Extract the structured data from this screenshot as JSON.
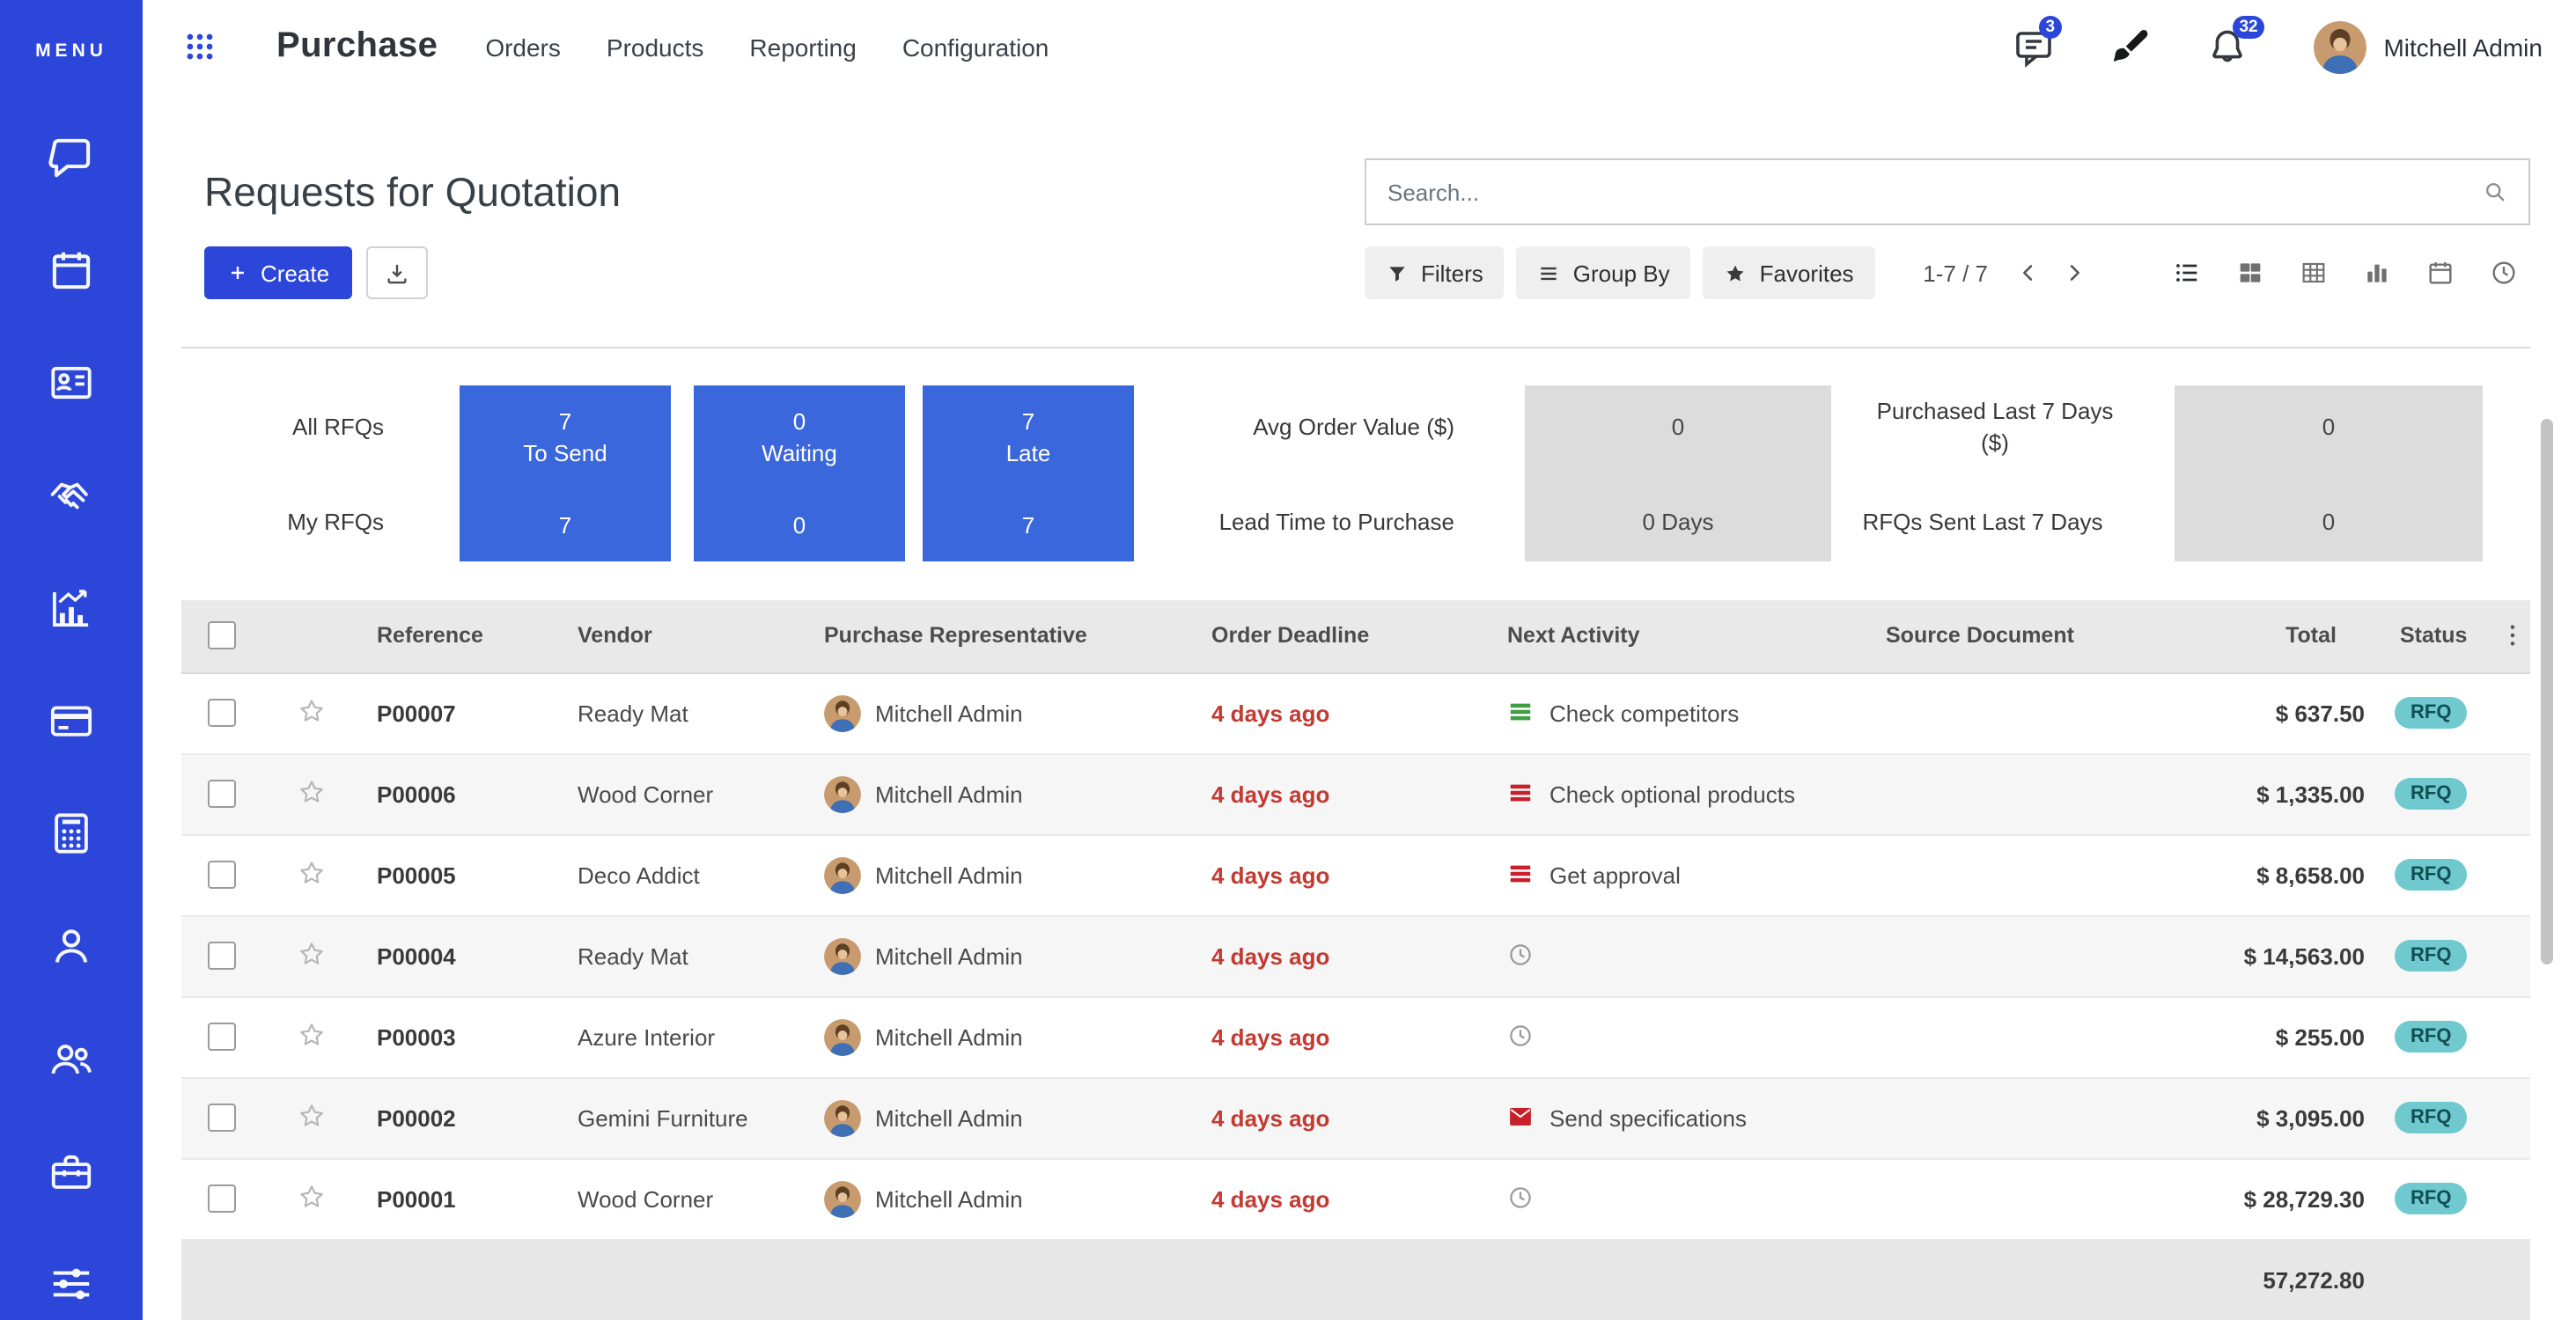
{
  "colors": {
    "accent": "#2b46d8",
    "card_blue": "#3a67dc",
    "danger": "#c23a32",
    "activity_red": "#c8202b",
    "activity_green": "#3f9e43",
    "badge_bg": "#6fc9ce",
    "badge_text": "#114f55",
    "header_bg": "#e9e9e9"
  },
  "sidebar": {
    "menu_label": "MENU",
    "items": [
      {
        "icon": "chat",
        "name": "sidebar-item-chat"
      },
      {
        "icon": "calendar",
        "name": "sidebar-item-calendar"
      },
      {
        "icon": "contacts",
        "name": "sidebar-item-contacts"
      },
      {
        "icon": "handshake",
        "name": "sidebar-item-handshake"
      },
      {
        "icon": "chart",
        "name": "sidebar-item-chart"
      },
      {
        "icon": "card",
        "name": "sidebar-item-card"
      },
      {
        "icon": "calculator",
        "name": "sidebar-item-calculator"
      },
      {
        "icon": "user",
        "name": "sidebar-item-user"
      },
      {
        "icon": "users",
        "name": "sidebar-item-users"
      },
      {
        "icon": "toolbox",
        "name": "sidebar-item-toolbox"
      },
      {
        "icon": "sliders",
        "name": "sidebar-item-sliders"
      }
    ]
  },
  "topbar": {
    "app_title": "Purchase",
    "menus": [
      "Orders",
      "Products",
      "Reporting",
      "Configuration"
    ],
    "messages_badge": "3",
    "notifications_badge": "32",
    "user_name": "Mitchell Admin"
  },
  "control_panel": {
    "page_title": "Requests for Quotation",
    "create_label": "Create",
    "search_placeholder": "Search...",
    "filters_label": "Filters",
    "group_by_label": "Group By",
    "favorites_label": "Favorites",
    "pager": "1-7 / 7",
    "views": [
      {
        "icon": "view-list",
        "name": "view-list-button",
        "cls": "active"
      },
      {
        "icon": "view-kanban",
        "name": "view-kanban-button",
        "cls": ""
      },
      {
        "icon": "view-pivot",
        "name": "view-pivot-button",
        "cls": ""
      },
      {
        "icon": "view-graph",
        "name": "view-graph-button",
        "cls": ""
      },
      {
        "icon": "view-calendar",
        "name": "view-calendar-button",
        "cls": ""
      },
      {
        "icon": "view-activity",
        "name": "view-activity-button",
        "cls": ""
      }
    ]
  },
  "dashboard": {
    "row_labels": {
      "all": "All RFQs",
      "my": "My RFQs"
    },
    "cards": [
      {
        "name": "to-send-card",
        "top_value": "7",
        "label": "To Send",
        "bottom_value": "7"
      },
      {
        "name": "waiting-card",
        "top_value": "0",
        "label": "Waiting",
        "bottom_value": "0"
      },
      {
        "name": "late-card",
        "top_value": "7",
        "label": "Late",
        "bottom_value": "7"
      }
    ],
    "metrics": {
      "avg_order_label": "Avg Order Value ($)",
      "avg_order_value": "0",
      "lead_time_label": "Lead Time to Purchase",
      "lead_time_value": "0 Days",
      "purchased_label": "Purchased Last 7 Days ($)",
      "purchased_value": "0",
      "rfqs_sent_label": "RFQs Sent Last 7 Days",
      "rfqs_sent_value": "0"
    }
  },
  "table": {
    "columns": {
      "reference": "Reference",
      "vendor": "Vendor",
      "rep": "Purchase Representative",
      "deadline": "Order Deadline",
      "activity": "Next Activity",
      "source": "Source Document",
      "total": "Total",
      "status": "Status"
    },
    "rows": [
      {
        "reference": "P00007",
        "vendor": "Ready Mat",
        "rep": "Mitchell Admin",
        "deadline": "4 days ago",
        "activity": "Check competitors",
        "activity_icon": "bars-green",
        "source": "",
        "total": "$ 637.50",
        "status": "RFQ"
      },
      {
        "reference": "P00006",
        "vendor": "Wood Corner",
        "rep": "Mitchell Admin",
        "deadline": "4 days ago",
        "activity": "Check optional products",
        "activity_icon": "bars-red",
        "source": "",
        "total": "$ 1,335.00",
        "status": "RFQ"
      },
      {
        "reference": "P00005",
        "vendor": "Deco Addict",
        "rep": "Mitchell Admin",
        "deadline": "4 days ago",
        "activity": "Get approval",
        "activity_icon": "bars-red",
        "source": "",
        "total": "$ 8,658.00",
        "status": "RFQ"
      },
      {
        "reference": "P00004",
        "vendor": "Ready Mat",
        "rep": "Mitchell Admin",
        "deadline": "4 days ago",
        "activity": "",
        "activity_icon": "clock-gray",
        "source": "",
        "total": "$ 14,563.00",
        "status": "RFQ"
      },
      {
        "reference": "P00003",
        "vendor": "Azure Interior",
        "rep": "Mitchell Admin",
        "deadline": "4 days ago",
        "activity": "",
        "activity_icon": "clock-gray",
        "source": "",
        "total": "$ 255.00",
        "status": "RFQ"
      },
      {
        "reference": "P00002",
        "vendor": "Gemini Furniture",
        "rep": "Mitchell Admin",
        "deadline": "4 days ago",
        "activity": "Send specifications",
        "activity_icon": "envelope-red",
        "source": "",
        "total": "$ 3,095.00",
        "status": "RFQ"
      },
      {
        "reference": "P00001",
        "vendor": "Wood Corner",
        "rep": "Mitchell Admin",
        "deadline": "4 days ago",
        "activity": "",
        "activity_icon": "clock-gray",
        "source": "",
        "total": "$ 28,729.30",
        "status": "RFQ"
      }
    ],
    "footer_total": "57,272.80"
  }
}
